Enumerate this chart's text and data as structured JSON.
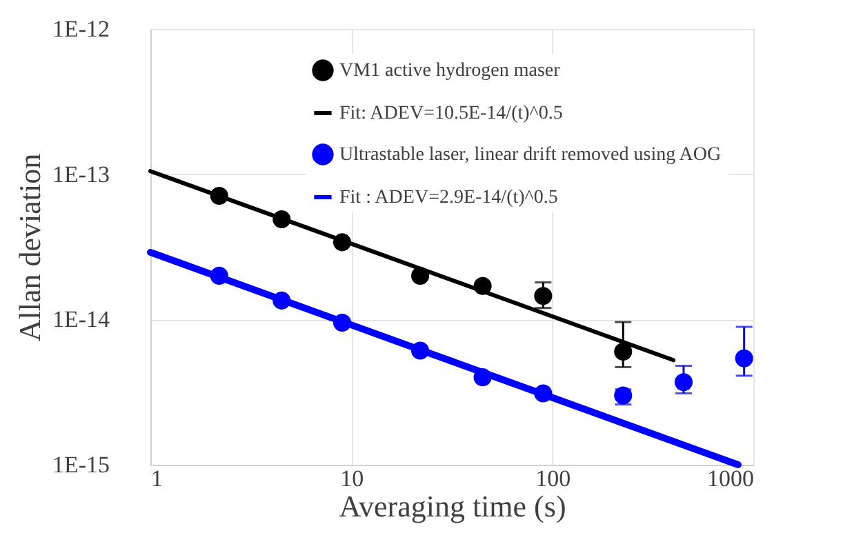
{
  "chart_data": {
    "type": "scatter",
    "xlabel": "Averaging time (s)",
    "ylabel": "Allan deviation",
    "log": "xy",
    "grid": true,
    "legend": "top right",
    "marker": "circle",
    "xlim": [
      1,
      1000
    ],
    "xticks": [
      1,
      10,
      100,
      1000
    ],
    "ylim": [
      1e-15,
      1e-12
    ],
    "yticks": [
      {
        "value": 1e-15,
        "label": "1E-15"
      },
      {
        "value": 1e-14,
        "label": "1E-14"
      },
      {
        "value": 1e-13,
        "label": "1E-13"
      },
      {
        "value": 1e-12,
        "label": "1E-12"
      }
    ],
    "series": [
      {
        "name": "VM1 active hydrogen maser",
        "color": "#000000",
        "x": [
          2.2,
          4.5,
          9,
          22,
          45,
          90,
          225
        ],
        "values": [
          7.1e-14,
          4.9e-14,
          3.4e-14,
          2e-14,
          1.7e-14,
          1.45e-14,
          6e-15
        ],
        "errors": [
          null,
          null,
          null,
          null,
          null,
          [
            1.2e-14,
            1.8e-14
          ],
          [
            4.7e-15,
            9.6e-15
          ]
        ]
      },
      {
        "name": "Fit: ADEV=10.5E-14/(t)^0.5",
        "type": "line",
        "marker": "none",
        "line_style": "solid",
        "color": "#000000",
        "x": [
          1,
          400
        ],
        "values": [
          1.05e-13,
          5.25e-15
        ]
      },
      {
        "name": "Ultrastable laser, linear drift removed using AOG",
        "color": "#0000ff",
        "x": [
          2.2,
          4.5,
          9,
          22,
          45,
          90,
          225,
          450,
          900
        ],
        "values": [
          2e-14,
          1.35e-14,
          9.5e-15,
          6.1e-15,
          4e-15,
          3.1e-15,
          3e-15,
          3.7e-15,
          5.4e-15
        ],
        "errors": [
          null,
          null,
          null,
          null,
          null,
          null,
          [
            2.6e-15,
            3.3e-15
          ],
          [
            3.1e-15,
            4.8e-15
          ],
          [
            4.1e-15,
            8.9e-15
          ]
        ]
      },
      {
        "name": "Fit : ADEV=2.9E-14/(t)^0.5",
        "type": "line",
        "marker": "none",
        "line_style": "solid",
        "color": "#0000ff",
        "x": [
          1,
          840
        ],
        "values": [
          2.9e-14,
          1e-15
        ]
      }
    ]
  }
}
